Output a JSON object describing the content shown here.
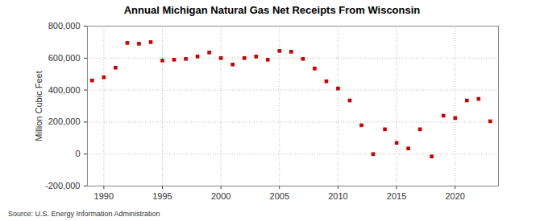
{
  "chart_data": {
    "type": "scatter",
    "title": "Annual Michigan Natural Gas Net Receipts From Wisconsin",
    "y_label": "Million Cubic Feet",
    "source": "Source: U.S. Energy Information Administration",
    "x": [
      1989,
      1990,
      1991,
      1992,
      1993,
      1994,
      1995,
      1996,
      1997,
      1998,
      1999,
      2000,
      2001,
      2002,
      2003,
      2004,
      2005,
      2006,
      2007,
      2008,
      2009,
      2010,
      2011,
      2012,
      2013,
      2014,
      2015,
      2016,
      2017,
      2018,
      2019,
      2020,
      2021,
      2022,
      2023
    ],
    "values": [
      460000,
      480000,
      540000,
      695000,
      690000,
      700000,
      585000,
      590000,
      595000,
      610000,
      635000,
      600000,
      560000,
      600000,
      610000,
      590000,
      645000,
      640000,
      595000,
      535000,
      455000,
      410000,
      335000,
      180000,
      0,
      155000,
      70000,
      35000,
      155000,
      -15000,
      240000,
      225000,
      335000,
      345000,
      205000
    ],
    "color": "#cc0000",
    "marker": "square",
    "xlim": [
      1988.6,
      2023.7
    ],
    "xticks": [
      1990,
      1995,
      2000,
      2005,
      2010,
      2015,
      2020
    ],
    "ylim": [
      -200000,
      800000
    ],
    "yticks": [
      {
        "value": -200000,
        "label": "-200,000"
      },
      {
        "value": 0,
        "label": "0"
      },
      {
        "value": 200000,
        "label": "200,000"
      },
      {
        "value": 400000,
        "label": "400,000"
      },
      {
        "value": 600000,
        "label": "600,000"
      },
      {
        "value": 800000,
        "label": "800,000"
      }
    ],
    "grid": true
  }
}
